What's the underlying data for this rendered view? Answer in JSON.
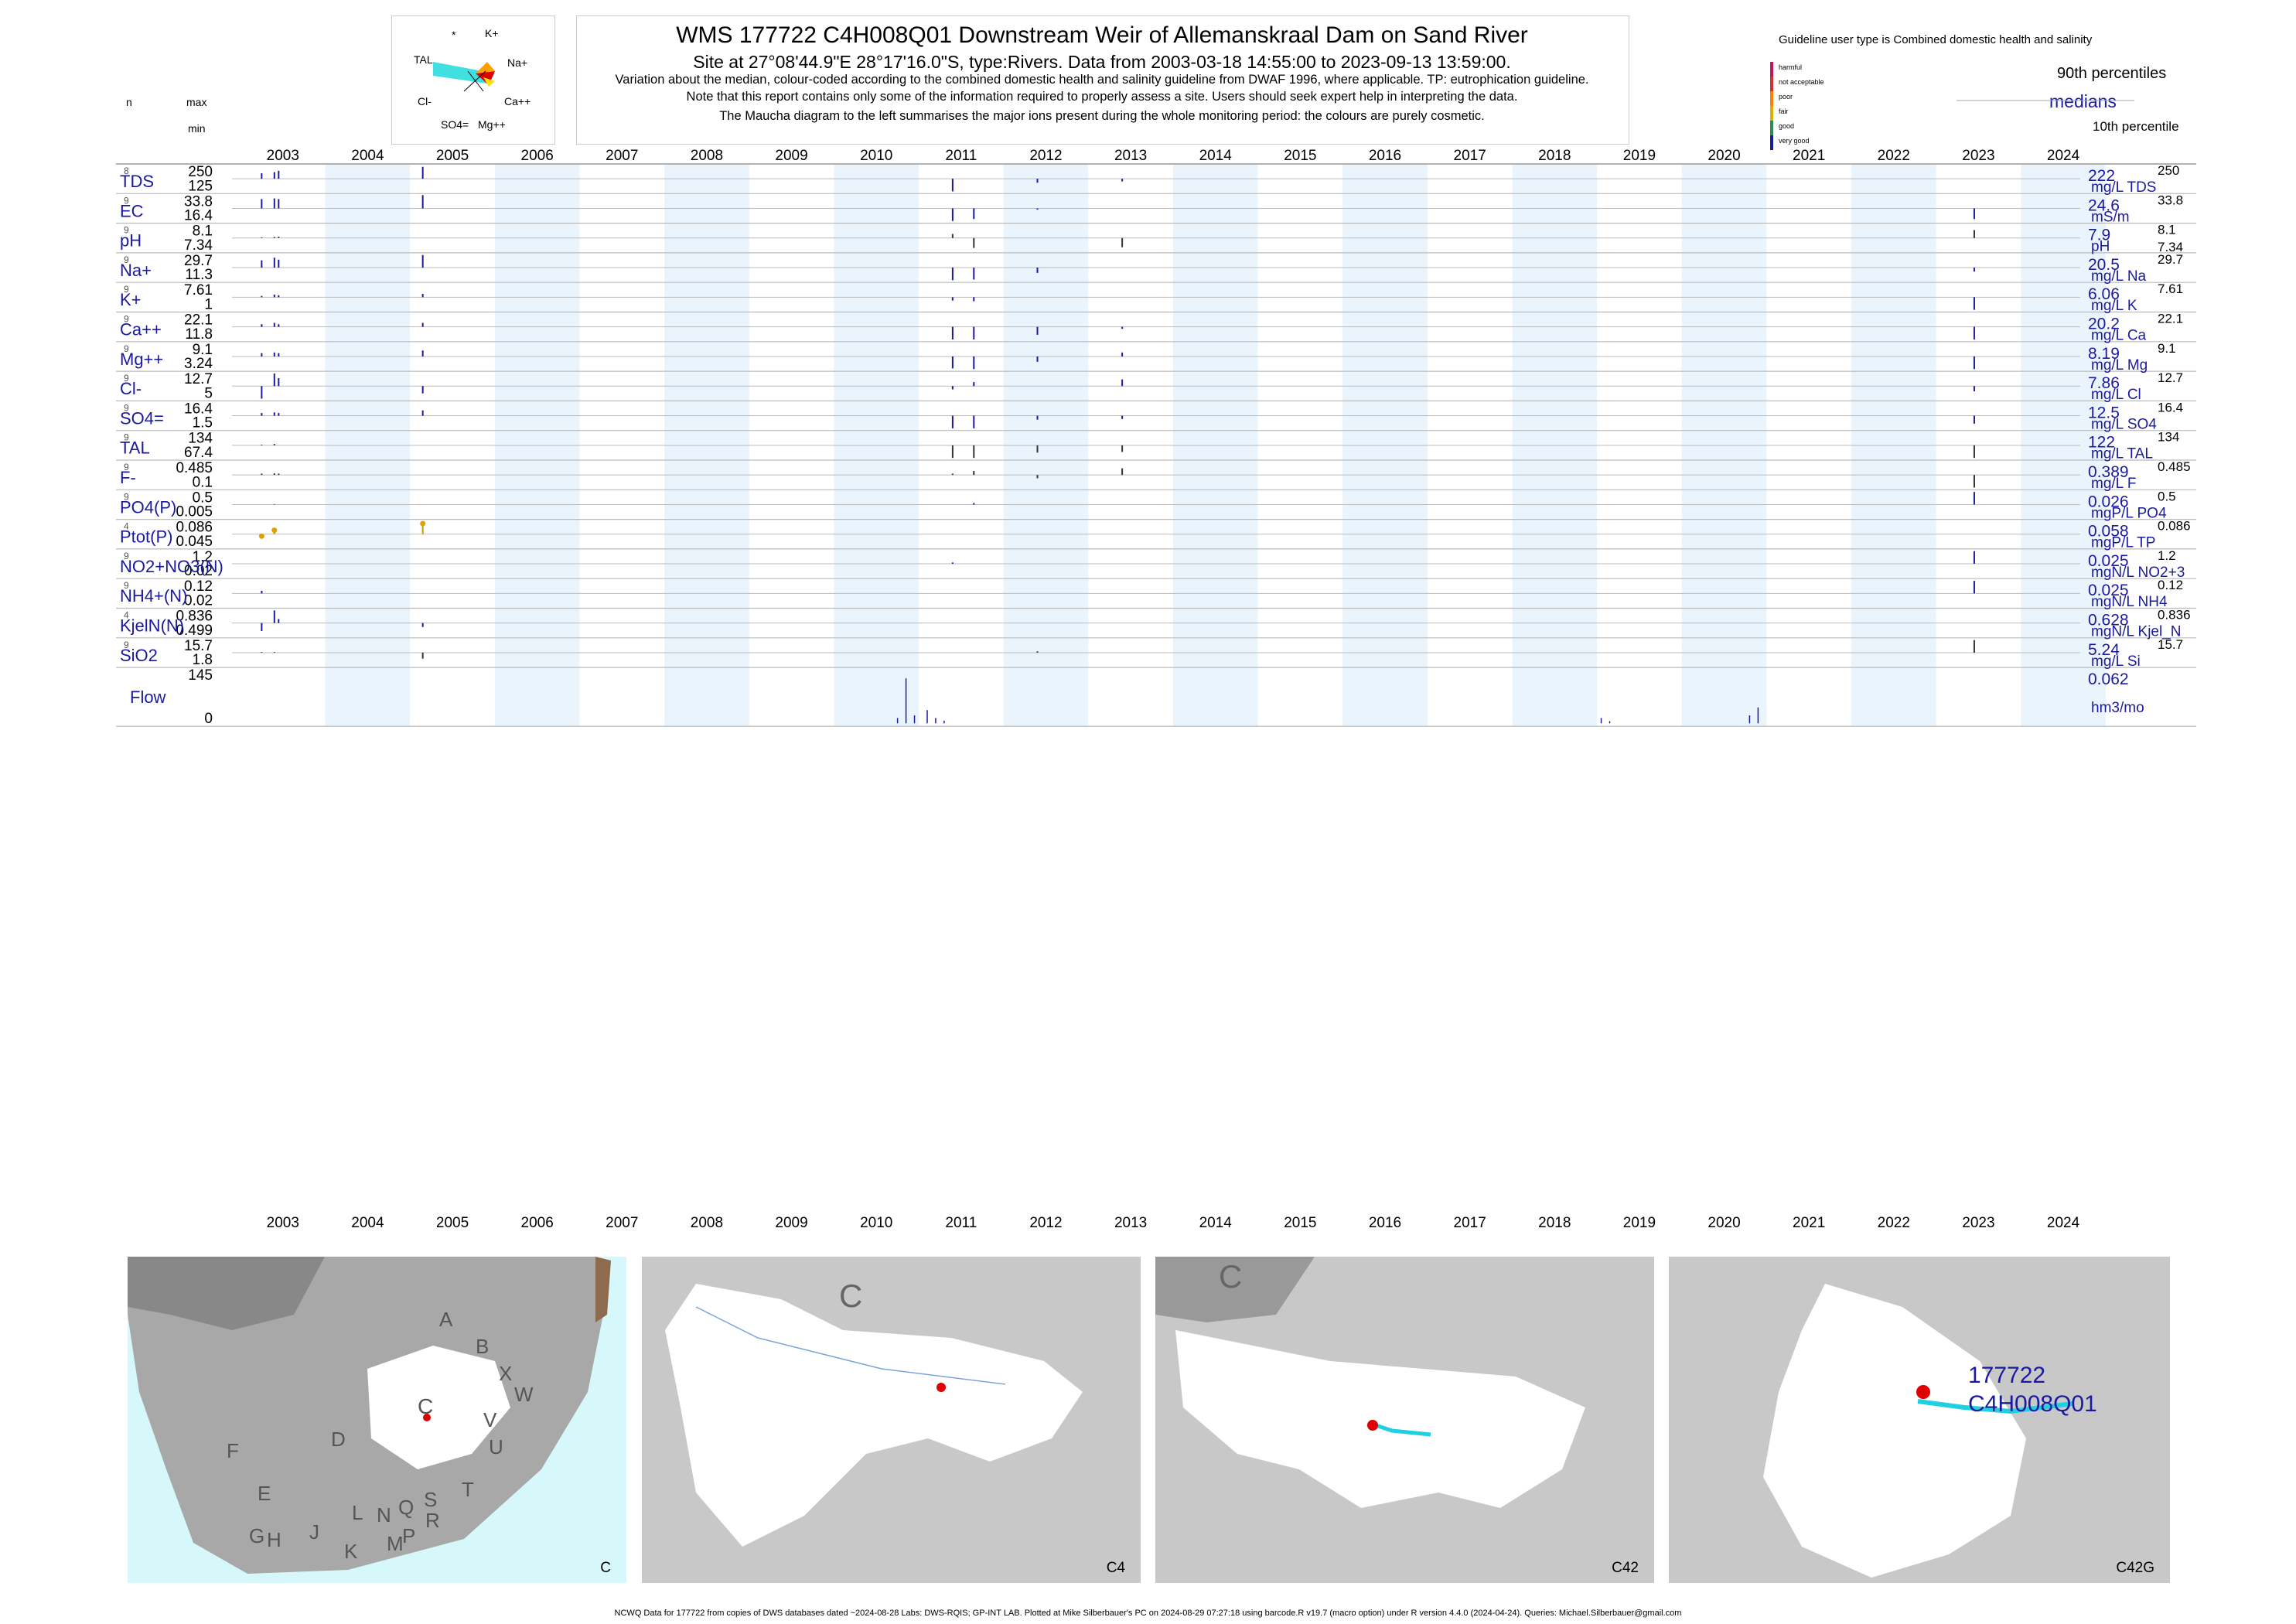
{
  "header": {
    "title": "WMS 177722 C4H008Q01 Downstream Weir of Allemanskraal Dam on Sand River",
    "subtitle": "Site at 27°08'44.9\"E 28°17'16.0\"S, type:Rivers.  Data from 2003-03-18 14:55:00 to 2023-09-13 13:59:00.",
    "notes": [
      "Variation about the median,  colour-coded according to the combined domestic health and salinity guideline from DWAF 1996, where applicable. TP: eutrophication guideline.",
      "Note that this report contains only some of the information required to properly assess a site. Users should seek expert help in interpreting the data.",
      "The Maucha diagram to the left summarises the major ions present during the whole monitoring period: the colours are purely cosmetic."
    ],
    "guideline_user": "Guideline user type is Combined domestic health and salinity",
    "legend_classes": [
      "harmful",
      "not acceptable",
      "poor",
      "fair",
      "good",
      "very good"
    ],
    "legend_colors": [
      "#c2185b",
      "#d32f2f",
      "#ff7f00",
      "#e0b000",
      "#2e8b57",
      "#1a1aa0"
    ],
    "p90_label": "90th percentiles",
    "median_label": "medians",
    "p10_label": "10th percentile",
    "col_n": "n",
    "col_max": "max",
    "col_min": "min"
  },
  "maucha": {
    "star": "*",
    "k": "K+",
    "tal": "TAL",
    "na": "Na+",
    "cl": "Cl-",
    "ca": "Ca++",
    "so4": "SO4=",
    "mg": "Mg++"
  },
  "chart_data": {
    "type": "bar",
    "title": "WMS 177722 C4H008Q01 Downstream Weir of Allemanskraal Dam on Sand River",
    "x_years": [
      "2003",
      "2004",
      "2005",
      "2006",
      "2007",
      "2008",
      "2009",
      "2010",
      "2011",
      "2012",
      "2013",
      "2014",
      "2015",
      "2016",
      "2017",
      "2018",
      "2019",
      "2020",
      "2021",
      "2022",
      "2023",
      "2024"
    ],
    "xlim": [
      2002.9,
      2024.7
    ],
    "shaded_years": [
      2004,
      2006,
      2008,
      2010,
      2012,
      2014,
      2016,
      2018,
      2020,
      2022,
      2024
    ],
    "panels": [
      {
        "label": "TDS",
        "n": "8",
        "max": "250",
        "min": "125",
        "median": "222",
        "unit": "mg/L TDS",
        "rmax": "250",
        "rmin": "",
        "bars": [
          [
            2003.25,
            0.42
          ],
          [
            2003.4,
            0.5
          ],
          [
            2003.45,
            0.6
          ],
          [
            2005.15,
            0.9
          ],
          [
            2011.4,
            -0.95
          ],
          [
            2012.4,
            -0.3
          ],
          [
            2013.4,
            -0.2
          ]
        ]
      },
      {
        "label": "EC",
        "n": "9",
        "max": "33.8",
        "min": "16.4",
        "median": "24.6",
        "unit": "mS/m",
        "rmax": "33.8",
        "rmin": "",
        "bars": [
          [
            2003.25,
            0.7
          ],
          [
            2003.4,
            0.75
          ],
          [
            2003.45,
            0.7
          ],
          [
            2005.15,
            1.0
          ],
          [
            2011.4,
            -0.95
          ],
          [
            2011.65,
            -0.8
          ],
          [
            2012.4,
            -0.1
          ],
          [
            2023.45,
            -0.8
          ]
        ]
      },
      {
        "label": "pH",
        "n": "9",
        "max": "8.1",
        "min": "7.34",
        "median": "7.9",
        "unit": "pH",
        "rmax": "8.1",
        "rmin": "7.34",
        "bars": [
          [
            2003.25,
            0.05
          ],
          [
            2003.4,
            0.08
          ],
          [
            2003.45,
            0.1
          ],
          [
            2011.4,
            0.3
          ],
          [
            2011.65,
            -0.75
          ],
          [
            2013.4,
            -0.7
          ],
          [
            2023.45,
            0.6
          ]
        ]
      },
      {
        "label": "Na+",
        "n": "9",
        "max": "29.7",
        "min": "11.3",
        "median": "20.5",
        "unit": "mg/L Na",
        "rmax": "29.7",
        "rmin": "",
        "bars": [
          [
            2003.25,
            0.55
          ],
          [
            2003.4,
            0.75
          ],
          [
            2003.45,
            0.6
          ],
          [
            2005.15,
            0.95
          ],
          [
            2011.4,
            -0.95
          ],
          [
            2011.65,
            -0.9
          ],
          [
            2012.4,
            -0.4
          ],
          [
            2023.45,
            -0.3
          ]
        ]
      },
      {
        "label": "K+",
        "n": "9",
        "max": "7.61",
        "min": "1",
        "median": "6.06",
        "unit": "mg/L K",
        "rmax": "7.61",
        "rmin": "",
        "bars": [
          [
            2003.25,
            0.1
          ],
          [
            2003.4,
            0.2
          ],
          [
            2003.45,
            0.15
          ],
          [
            2005.15,
            0.25
          ],
          [
            2011.4,
            -0.25
          ],
          [
            2011.65,
            -0.3
          ],
          [
            2023.45,
            -0.95
          ]
        ]
      },
      {
        "label": "Ca++",
        "n": "9",
        "max": "22.1",
        "min": "11.8",
        "median": "20.2",
        "unit": "mg/L Ca",
        "rmax": "22.1",
        "rmin": "",
        "bars": [
          [
            2003.25,
            0.2
          ],
          [
            2003.4,
            0.3
          ],
          [
            2003.45,
            0.2
          ],
          [
            2005.15,
            0.3
          ],
          [
            2011.4,
            -0.95
          ],
          [
            2011.65,
            -0.95
          ],
          [
            2012.4,
            -0.6
          ],
          [
            2013.4,
            -0.15
          ],
          [
            2023.45,
            -0.95
          ]
        ]
      },
      {
        "label": "Mg++",
        "n": "9",
        "max": "9.1",
        "min": "3.24",
        "median": "8.19",
        "unit": "mg/L Mg",
        "rmax": "9.1",
        "rmin": "",
        "bars": [
          [
            2003.25,
            0.25
          ],
          [
            2003.4,
            0.3
          ],
          [
            2003.45,
            0.25
          ],
          [
            2005.15,
            0.45
          ],
          [
            2011.4,
            -0.9
          ],
          [
            2011.65,
            -0.95
          ],
          [
            2012.4,
            -0.4
          ],
          [
            2013.4,
            0.3
          ],
          [
            2023.45,
            -0.95
          ]
        ]
      },
      {
        "label": "Cl-",
        "n": "9",
        "max": "12.7",
        "min": "5",
        "median": "7.86",
        "unit": "mg/L Cl",
        "rmax": "12.7",
        "rmin": "",
        "bars": [
          [
            2003.25,
            -0.95
          ],
          [
            2003.4,
            0.95
          ],
          [
            2003.45,
            0.6
          ],
          [
            2005.15,
            -0.55
          ],
          [
            2011.4,
            -0.25
          ],
          [
            2011.65,
            0.3
          ],
          [
            2013.4,
            0.5
          ],
          [
            2023.45,
            -0.4
          ]
        ]
      },
      {
        "label": "SO4=",
        "n": "9",
        "max": "16.4",
        "min": "1.5",
        "median": "12.5",
        "unit": "mg/L SO4",
        "rmax": "16.4",
        "rmin": "",
        "bars": [
          [
            2003.25,
            0.2
          ],
          [
            2003.4,
            0.25
          ],
          [
            2003.45,
            0.2
          ],
          [
            2005.15,
            0.4
          ],
          [
            2011.4,
            -0.95
          ],
          [
            2011.65,
            -0.95
          ],
          [
            2012.4,
            -0.3
          ],
          [
            2013.4,
            -0.25
          ],
          [
            2023.45,
            -0.6
          ]
        ]
      },
      {
        "label": "TAL",
        "n": "9",
        "max": "134",
        "min": "67.4",
        "median": "122",
        "unit": "mg/L TAL",
        "rmax": "134",
        "rmin": "",
        "bars": [
          [
            2003.25,
            0.05
          ],
          [
            2003.4,
            0.1
          ],
          [
            2011.4,
            -0.95
          ],
          [
            2011.65,
            -0.95
          ],
          [
            2012.4,
            -0.55
          ],
          [
            2013.4,
            -0.5
          ],
          [
            2023.45,
            -0.95
          ]
        ]
      },
      {
        "label": "F-",
        "n": "9",
        "max": "0.485",
        "min": "0.1",
        "median": "0.389",
        "unit": "mg/L F",
        "rmax": "0.485",
        "rmin": "",
        "bars": [
          [
            2003.25,
            0.1
          ],
          [
            2003.4,
            0.12
          ],
          [
            2003.45,
            0.1
          ],
          [
            2011.4,
            0.1
          ],
          [
            2011.65,
            0.3
          ],
          [
            2012.4,
            -0.25
          ],
          [
            2013.4,
            0.5
          ],
          [
            2023.45,
            -0.95
          ]
        ]
      },
      {
        "label": "PO4(P)",
        "n": "9",
        "max": "0.5",
        "min": "0.005",
        "median": "0.026",
        "unit": "mgP/L PO4",
        "rmax": "0.5",
        "rmin": "",
        "bars": [
          [
            2003.4,
            0.03
          ],
          [
            2011.65,
            0.12
          ],
          [
            2023.45,
            0.95
          ]
        ]
      },
      {
        "label": "Ptot(P)",
        "n": "4",
        "max": "0.086",
        "min": "0.045",
        "median": "0.058",
        "unit": "mgP/L TP",
        "rmax": "0.086",
        "rmin": "",
        "bars": [
          [
            2003.25,
            -0.15
          ],
          [
            2003.4,
            0.3
          ],
          [
            2005.15,
            0.8
          ]
        ]
      },
      {
        "label": "NO2+NO3(N)",
        "n": "9",
        "max": "1.2",
        "min": "0.02",
        "median": "0.025",
        "unit": "mgN/L NO2+3",
        "rmax": "1.2",
        "rmin": "",
        "bars": [
          [
            2011.4,
            0.1
          ],
          [
            2023.45,
            0.95
          ]
        ]
      },
      {
        "label": "NH4+(N)",
        "n": "9",
        "max": "0.12",
        "min": "0.02",
        "median": "0.025",
        "unit": "mgN/L NH4",
        "rmax": "0.12",
        "rmin": "",
        "bars": [
          [
            2003.25,
            0.2
          ],
          [
            2023.45,
            0.95
          ]
        ]
      },
      {
        "label": "KjelN(N)",
        "n": "4",
        "max": "0.836",
        "min": "0.499",
        "median": "0.628",
        "unit": "mgN/L Kjel_N",
        "rmax": "0.836",
        "rmin": "",
        "bars": [
          [
            2003.25,
            -0.6
          ],
          [
            2003.4,
            0.95
          ],
          [
            2003.45,
            0.3
          ],
          [
            2005.15,
            -0.3
          ]
        ]
      },
      {
        "label": "SiO2",
        "n": "9",
        "max": "15.7",
        "min": "1.8",
        "median": "5.24",
        "unit": "mg/L Si",
        "rmax": "15.7",
        "rmin": "",
        "bars": [
          [
            2003.25,
            0.05
          ],
          [
            2003.4,
            0.05
          ],
          [
            2005.15,
            -0.45
          ],
          [
            2012.4,
            0.1
          ],
          [
            2023.45,
            0.95
          ]
        ]
      }
    ],
    "flow": {
      "label": "Flow",
      "max": "145",
      "min": "0",
      "median": "0.062",
      "unit": "hm3/mo",
      "bars": [
        [
          2010.75,
          0.1
        ],
        [
          2010.85,
          0.85
        ],
        [
          2010.95,
          0.15
        ],
        [
          2011.1,
          0.25
        ],
        [
          2011.2,
          0.1
        ],
        [
          2011.3,
          0.05
        ],
        [
          2019.05,
          0.1
        ],
        [
          2019.15,
          0.04
        ],
        [
          2020.8,
          0.15
        ],
        [
          2020.9,
          0.3
        ]
      ]
    }
  },
  "maps": {
    "labels": [
      "C",
      "C4",
      "C42",
      "C42G"
    ],
    "big_letter": "C",
    "region_letters": [
      "A",
      "B",
      "X",
      "W",
      "C",
      "D",
      "V",
      "U",
      "T",
      "F",
      "E",
      "G",
      "H",
      "J",
      "K",
      "L",
      "M",
      "N",
      "P",
      "Q",
      "R",
      "S"
    ],
    "site_id": "177722",
    "site_code": "C4H008Q01"
  },
  "footer": "NCWQ Data for 177722 from copies of DWS databases dated ~2024-08-28 Labs: DWS-RQIS; GP-INT LAB. Plotted at Mike Silberbauer's PC on 2024-08-29 07:27:18 using barcode.R v19.7 (macro option) under R version 4.4.0 (2024-04-24). Queries: Michael.Silberbauer@gmail.com"
}
